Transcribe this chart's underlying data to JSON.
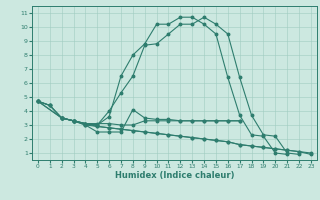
{
  "xlabel": "Humidex (Indice chaleur)",
  "background_color": "#cce8e0",
  "line_color": "#2e7d6e",
  "xlim": [
    -0.5,
    23.5
  ],
  "ylim": [
    0.5,
    11.5
  ],
  "xticks": [
    0,
    1,
    2,
    3,
    4,
    5,
    6,
    7,
    8,
    9,
    10,
    11,
    12,
    13,
    14,
    15,
    16,
    17,
    18,
    19,
    20,
    21,
    22,
    23
  ],
  "yticks": [
    1,
    2,
    3,
    4,
    5,
    6,
    7,
    8,
    9,
    10,
    11
  ],
  "curves": [
    {
      "x": [
        0,
        2,
        3,
        4,
        5,
        6,
        7,
        8,
        9,
        10,
        11,
        12,
        13,
        14,
        15,
        16,
        17,
        18,
        19,
        20,
        21,
        22,
        23
      ],
      "y": [
        4.7,
        3.5,
        3.3,
        3.1,
        3.0,
        3.6,
        6.5,
        8.0,
        8.8,
        10.2,
        10.2,
        10.7,
        10.7,
        10.2,
        9.5,
        6.4,
        3.7,
        2.3,
        2.2,
        1.0,
        0.9,
        null,
        null
      ]
    },
    {
      "x": [
        0,
        1,
        2,
        3,
        4,
        5,
        6,
        7,
        8,
        9,
        10,
        11,
        12,
        13,
        14,
        15,
        16,
        17,
        18,
        19,
        20,
        21,
        22,
        23
      ],
      "y": [
        4.7,
        4.4,
        3.5,
        3.3,
        3.1,
        3.0,
        4.0,
        5.3,
        6.5,
        8.7,
        8.8,
        9.5,
        10.2,
        10.2,
        10.7,
        10.2,
        9.5,
        6.4,
        3.7,
        2.3,
        2.2,
        1.0,
        0.9,
        null
      ]
    },
    {
      "x": [
        2,
        3,
        4,
        5,
        6,
        7,
        8,
        9,
        10,
        11,
        12,
        13,
        14,
        15,
        16,
        17
      ],
      "y": [
        3.5,
        3.3,
        3.1,
        3.1,
        3.1,
        3.0,
        3.0,
        3.3,
        3.3,
        3.3,
        3.3,
        3.3,
        3.3,
        3.3,
        3.3,
        3.3
      ]
    },
    {
      "x": [
        0,
        1,
        2,
        3,
        4,
        5,
        6,
        7,
        8,
        9,
        10,
        11,
        12,
        13,
        14,
        15,
        16,
        17
      ],
      "y": [
        4.7,
        4.4,
        3.5,
        3.3,
        3.0,
        2.5,
        2.5,
        2.5,
        4.1,
        3.5,
        3.4,
        3.4,
        3.3,
        3.3,
        3.3,
        3.3,
        3.3,
        3.3
      ]
    },
    {
      "x": [
        0,
        1,
        2,
        3,
        4,
        5,
        6,
        7,
        8,
        9,
        10,
        11,
        12,
        13,
        14,
        15,
        16,
        17,
        18,
        19,
        20,
        21,
        22,
        23
      ],
      "y": [
        4.7,
        4.4,
        3.5,
        3.3,
        3.0,
        2.9,
        2.8,
        2.7,
        2.6,
        2.5,
        2.4,
        2.3,
        2.2,
        2.1,
        2.0,
        1.9,
        1.8,
        1.6,
        1.5,
        1.4,
        1.3,
        1.2,
        1.1,
        0.9
      ]
    },
    {
      "x": [
        0,
        2,
        3,
        4,
        5,
        6,
        7,
        8,
        9,
        10,
        11,
        12,
        13,
        14,
        15,
        16,
        17,
        18,
        19,
        20,
        21,
        22,
        23
      ],
      "y": [
        4.7,
        3.5,
        3.3,
        3.1,
        2.9,
        2.8,
        2.7,
        2.6,
        2.5,
        2.4,
        2.3,
        2.2,
        2.1,
        2.0,
        1.9,
        1.8,
        1.6,
        1.5,
        1.4,
        1.3,
        1.2,
        1.1,
        1.0
      ]
    }
  ]
}
